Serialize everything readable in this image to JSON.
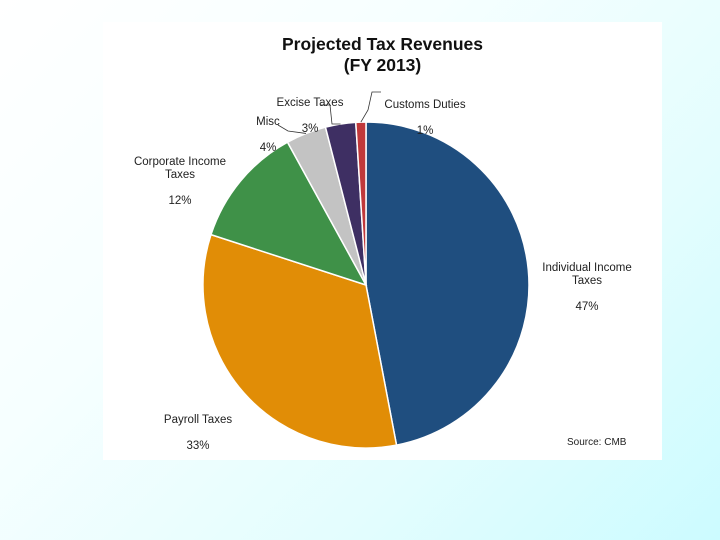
{
  "chart_data": {
    "type": "pie",
    "title": "Projected Tax Revenues",
    "subtitle": "(FY 2013)",
    "source": "Source: CMB",
    "slices": [
      {
        "name": "Individual Income Taxes",
        "value": 47,
        "pct_label": "47%",
        "color": "#1f4e7f"
      },
      {
        "name": "Payroll Taxes",
        "value": 33,
        "pct_label": "33%",
        "color": "#e18d06"
      },
      {
        "name": "Corporate Income Taxes",
        "value": 12,
        "pct_label": "12%",
        "color": "#3f9148"
      },
      {
        "name": "Misc",
        "value": 4,
        "pct_label": "4%",
        "color": "#c3c3c3"
      },
      {
        "name": "Excise Taxes",
        "value": 3,
        "pct_label": "3%",
        "color": "#3e2f63"
      },
      {
        "name": "Customs Duties",
        "value": 1,
        "pct_label": "1%",
        "color": "#c0393b"
      }
    ],
    "start": "top",
    "direction": "clockwise"
  }
}
